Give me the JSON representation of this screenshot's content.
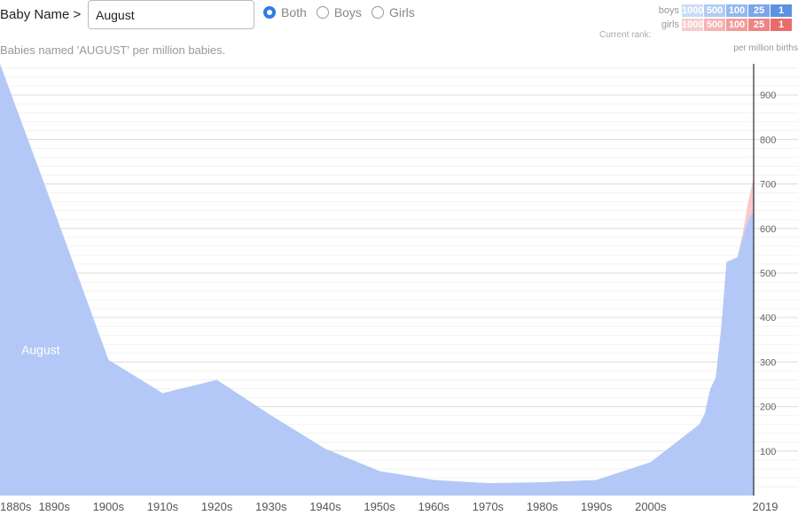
{
  "header": {
    "name_label": "Baby Name >",
    "name_value": "August",
    "radios": [
      {
        "label": "Both",
        "checked": true
      },
      {
        "label": "Boys",
        "checked": false
      },
      {
        "label": "Girls",
        "checked": false
      }
    ],
    "caption": "Babies named 'AUGUST' per million babies."
  },
  "rank": {
    "boys_label": "boys",
    "girls_label": "girls",
    "current_rank_label": "Current rank:",
    "cells": [
      "1000",
      "500",
      "100",
      "25",
      "1"
    ],
    "boys_colors": [
      "#c8dcf8",
      "#b2ccf2",
      "#94b8ee",
      "#7aa7e8",
      "#5b92e2"
    ],
    "girls_colors": [
      "#f9cccc",
      "#f5b3b3",
      "#f29b9b",
      "#ee8484",
      "#eb6b6b"
    ]
  },
  "unit_label": "per million births",
  "chart_data": {
    "type": "area",
    "title": "",
    "xlim": [
      1880,
      2019
    ],
    "ylim": [
      0,
      970
    ],
    "y_ticks": [
      100,
      200,
      300,
      400,
      500,
      600,
      700,
      800,
      900
    ],
    "x_ticks": [
      "1880s",
      "1890s",
      "1900s",
      "1910s",
      "1920s",
      "1930s",
      "1940s",
      "1950s",
      "1960s",
      "1970s",
      "1980s",
      "1990s",
      "2000s",
      "2019"
    ],
    "area_label": "August",
    "colors": {
      "boys": "#b3c8f6",
      "girls": "#f8c9cc",
      "grid": "#e8e8e8",
      "axis": "#000000"
    },
    "series": [
      {
        "name": "boys",
        "x": [
          1880,
          1890,
          1900,
          1910,
          1920,
          1930,
          1940,
          1950,
          1960,
          1970,
          1980,
          1990,
          2000,
          2009,
          2010,
          2011,
          2012,
          2013,
          2014,
          2015,
          2016,
          2017,
          2018,
          2019
        ],
        "y": [
          970,
          640,
          305,
          230,
          260,
          180,
          105,
          55,
          35,
          28,
          30,
          35,
          75,
          160,
          185,
          240,
          265,
          375,
          525,
          530,
          535,
          580,
          620,
          640
        ]
      },
      {
        "name": "girls",
        "x": [
          2015,
          2016,
          2017,
          2018,
          2019
        ],
        "y": [
          0,
          1,
          10,
          40,
          75
        ]
      }
    ]
  }
}
